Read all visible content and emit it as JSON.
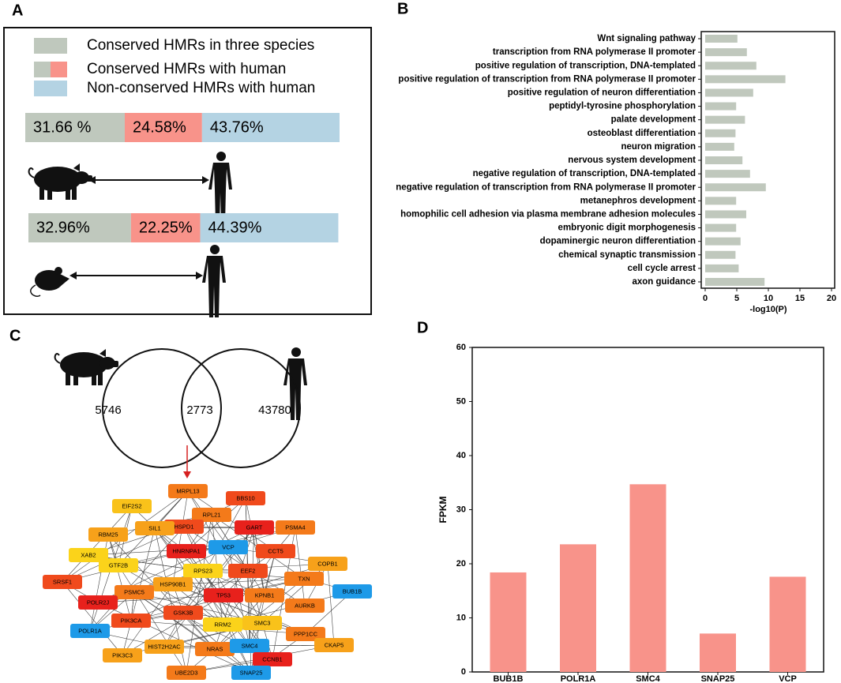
{
  "panel_labels": [
    "A",
    "B",
    "C",
    "D"
  ],
  "chart_data": [
    {
      "type": "stacked-barh",
      "categories": [
        null,
        null
      ],
      "series": [
        {
          "name": "Conserved HMRs in three species",
          "color": "#bfc8bd",
          "values": [
            31.66,
            32.96
          ],
          "value_labels": [
            "31.66 %",
            "32.96%"
          ]
        },
        {
          "name": "Conserved HMRs with human",
          "color": "#f8938a",
          "values": [
            24.58,
            22.25
          ],
          "value_labels": [
            "24.58%",
            "22.25%"
          ]
        },
        {
          "name": "Non-conserved HMRs with human",
          "color": "#b4d3e3",
          "values": [
            43.76,
            44.39
          ],
          "value_labels": [
            "43.76%",
            "44.39%"
          ]
        }
      ]
    },
    {
      "type": "barh",
      "color": "#c0c8bd",
      "categories": [
        "Wnt signaling pathway",
        "transcription from RNA polymerase II promoter",
        "positive regulation of transcription, DNA-templated",
        "positive regulation of transcription from RNA polymerase II promoter",
        "positive regulation of neuron differentiation",
        "peptidyl-tyrosine phosphorylation",
        "palate development",
        "osteoblast differentiation",
        "neuron migration",
        "nervous system development",
        "negative regulation of transcription, DNA-templated",
        "negative regulation of transcription from RNA polymerase II promoter",
        "metanephros development",
        "homophilic cell adhesion via plasma membrane adhesion molecules",
        "embryonic digit morphogenesis",
        "dopaminergic neuron differentiation",
        "chemical synaptic transmission",
        "cell cycle arrest",
        "axon guidance"
      ],
      "values": [
        5.1,
        6.6,
        8.1,
        12.7,
        7.6,
        4.9,
        6.3,
        4.8,
        4.6,
        5.9,
        7.1,
        9.6,
        4.9,
        6.5,
        4.9,
        5.6,
        4.8,
        5.3,
        9.4
      ],
      "xlim": [
        0,
        20
      ],
      "xticks": [
        0,
        5,
        10,
        15,
        20
      ],
      "xlabel": "-log10(P)"
    },
    {
      "type": "venn",
      "values": [
        5746,
        2773,
        43780
      ]
    },
    {
      "type": "bar",
      "color": "#f8938a",
      "categories": [
        "BUB1B",
        "POLR1A",
        "SMC4",
        "SNAP25",
        "VCP"
      ],
      "values": [
        18.4,
        23.6,
        34.7,
        7.1,
        17.6
      ],
      "ylim": [
        0,
        60
      ],
      "yticks": [
        0,
        10,
        20,
        30,
        40,
        50,
        60
      ],
      "ylabel": "FPKM"
    }
  ],
  "network": {
    "nodes": [
      {
        "label": "MRPL13",
        "color": "#f47a1a"
      },
      {
        "label": "BBS10",
        "color": "#f04a1c"
      },
      {
        "label": "EIF2S2",
        "color": "#f9c21a"
      },
      {
        "label": "RPL21",
        "color": "#f47a1a"
      },
      {
        "label": "HSPD1",
        "color": "#f04a1c"
      },
      {
        "label": "GART",
        "color": "#e8211c"
      },
      {
        "label": "PSMA4",
        "color": "#f47a1a"
      },
      {
        "label": "SIL1",
        "color": "#f7a11a"
      },
      {
        "label": "RBM25",
        "color": "#f7a11a"
      },
      {
        "label": "VCP",
        "color": "#1e9ae8"
      },
      {
        "label": "HNRNPA1",
        "color": "#e8211c"
      },
      {
        "label": "CCT5",
        "color": "#f04a1c"
      },
      {
        "label": "XAB2",
        "color": "#fbd31a"
      },
      {
        "label": "GTF2B",
        "color": "#fbd31a"
      },
      {
        "label": "COPB1",
        "color": "#f7a11a"
      },
      {
        "label": "RPS23",
        "color": "#fbd31a"
      },
      {
        "label": "EEF2",
        "color": "#f04a1c"
      },
      {
        "label": "HSP90B1",
        "color": "#f7a11a"
      },
      {
        "label": "TXN",
        "color": "#f47a1a"
      },
      {
        "label": "SRSF1",
        "color": "#f04a1c"
      },
      {
        "label": "PSMC5",
        "color": "#f47a1a"
      },
      {
        "label": "TP53",
        "color": "#e8211c"
      },
      {
        "label": "KPNB1",
        "color": "#f47a1a"
      },
      {
        "label": "BUB1B",
        "color": "#1e9ae8"
      },
      {
        "label": "POLR2J",
        "color": "#e8211c"
      },
      {
        "label": "AURKB",
        "color": "#f47a1a"
      },
      {
        "label": "GSK3B",
        "color": "#f04a1c"
      },
      {
        "label": "PIK3CA",
        "color": "#f04a1c"
      },
      {
        "label": "RRM2",
        "color": "#fbd31a"
      },
      {
        "label": "SMC3",
        "color": "#f9c21a"
      },
      {
        "label": "PPP1CC",
        "color": "#f47a1a"
      },
      {
        "label": "POLR1A",
        "color": "#1e9ae8"
      },
      {
        "label": "HIST2H2AC",
        "color": "#f7a11a"
      },
      {
        "label": "NRAS",
        "color": "#f47a1a"
      },
      {
        "label": "SMC4",
        "color": "#1e9ae8"
      },
      {
        "label": "CKAP5",
        "color": "#f7a11a"
      },
      {
        "label": "PIK3C3",
        "color": "#f7a11a"
      },
      {
        "label": "CCNB1",
        "color": "#e8211c"
      },
      {
        "label": "UBE2D3",
        "color": "#f47a1a"
      },
      {
        "label": "SNAP25",
        "color": "#1e9ae8"
      }
    ]
  }
}
